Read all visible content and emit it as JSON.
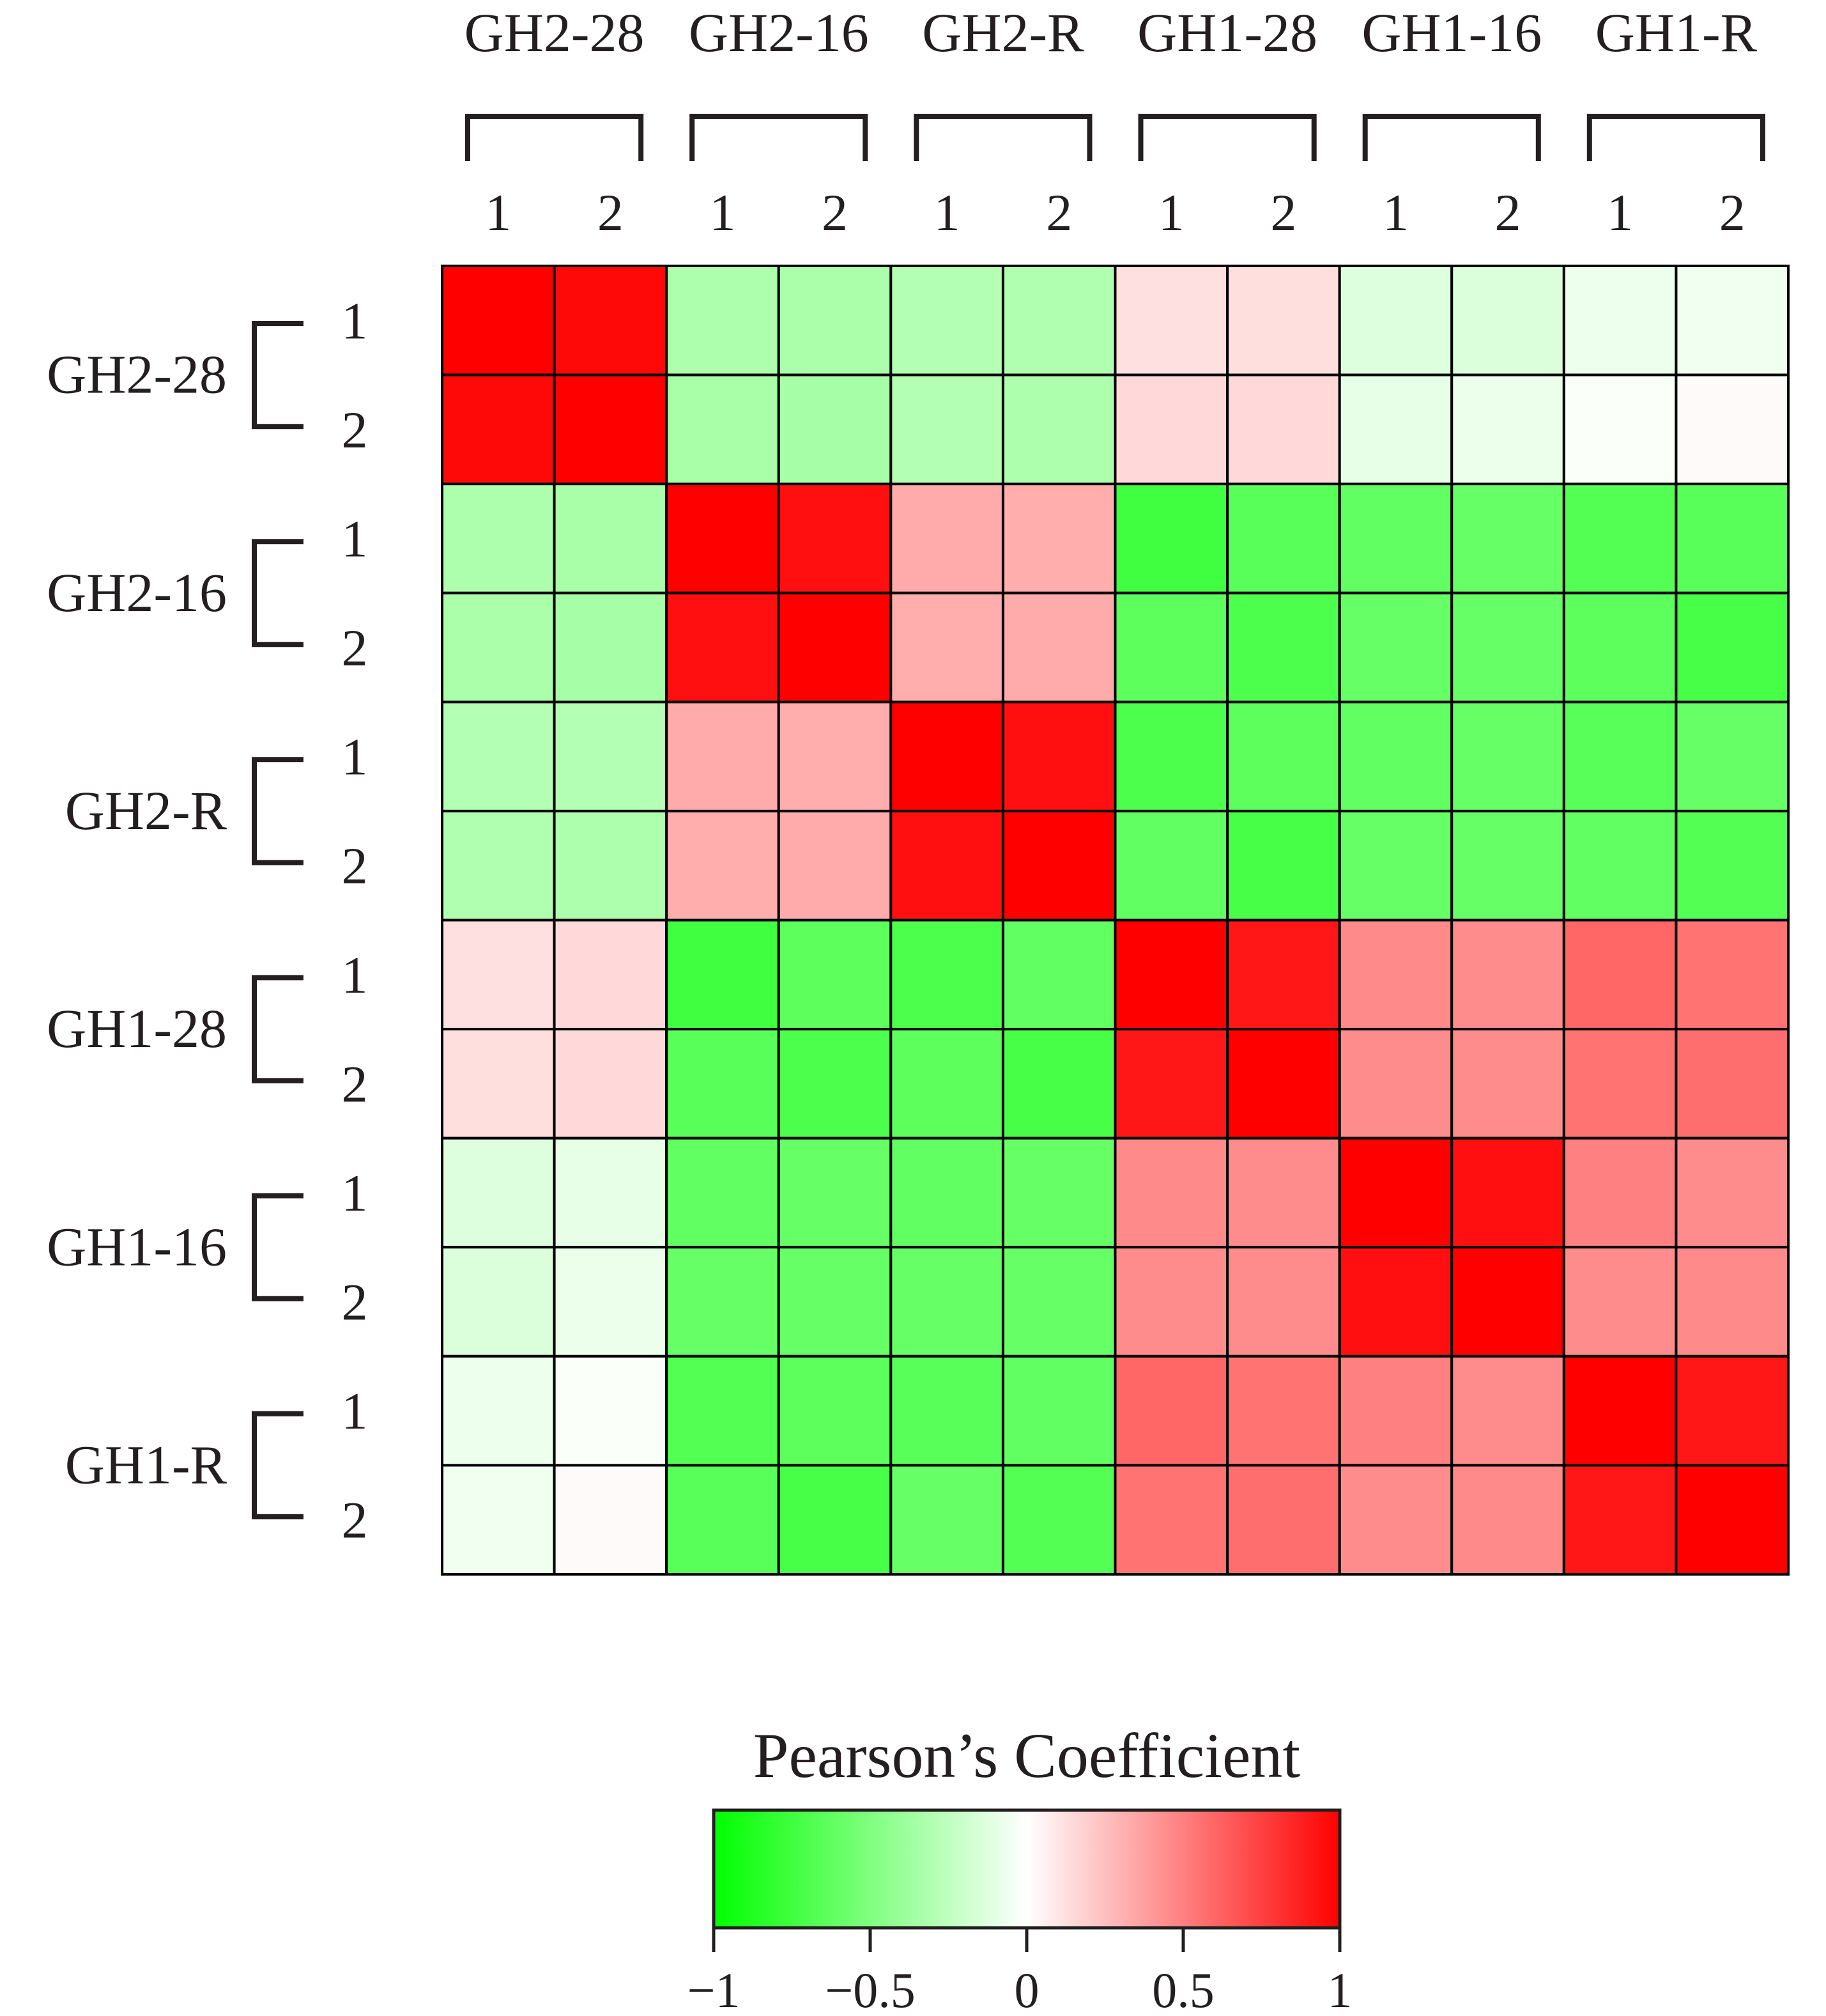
{
  "chart_data": {
    "type": "heatmap",
    "groups": [
      "GH2-28",
      "GH2-16",
      "GH2-R",
      "GH1-28",
      "GH1-16",
      "GH1-R"
    ],
    "replicates": [
      "1",
      "2"
    ],
    "matrix": [
      [
        1.0,
        0.97,
        -0.32,
        -0.33,
        -0.3,
        -0.31,
        0.12,
        0.13,
        -0.13,
        -0.14,
        -0.07,
        -0.06
      ],
      [
        0.97,
        1.0,
        -0.34,
        -0.35,
        -0.3,
        -0.32,
        0.15,
        0.15,
        -0.1,
        -0.08,
        -0.02,
        0.02
      ],
      [
        -0.32,
        -0.34,
        1.0,
        0.94,
        0.33,
        0.32,
        -0.75,
        -0.65,
        -0.62,
        -0.6,
        -0.68,
        -0.65
      ],
      [
        -0.33,
        -0.35,
        0.94,
        1.0,
        0.32,
        0.33,
        -0.64,
        -0.7,
        -0.6,
        -0.6,
        -0.64,
        -0.72
      ],
      [
        -0.3,
        -0.3,
        0.33,
        0.32,
        1.0,
        0.94,
        -0.7,
        -0.64,
        -0.62,
        -0.6,
        -0.65,
        -0.6
      ],
      [
        -0.31,
        -0.32,
        0.32,
        0.33,
        0.94,
        1.0,
        -0.62,
        -0.72,
        -0.6,
        -0.6,
        -0.62,
        -0.68
      ],
      [
        0.12,
        0.15,
        -0.75,
        -0.64,
        -0.7,
        -0.62,
        1.0,
        0.91,
        0.46,
        0.45,
        0.6,
        0.55
      ],
      [
        0.13,
        0.15,
        -0.65,
        -0.7,
        -0.64,
        -0.72,
        0.91,
        1.0,
        0.45,
        0.45,
        0.55,
        0.57
      ],
      [
        -0.13,
        -0.1,
        -0.62,
        -0.6,
        -0.62,
        -0.6,
        0.46,
        0.45,
        1.0,
        0.94,
        0.5,
        0.45
      ],
      [
        -0.14,
        -0.08,
        -0.6,
        -0.6,
        -0.6,
        -0.6,
        0.45,
        0.45,
        0.94,
        1.0,
        0.45,
        0.46
      ],
      [
        -0.07,
        -0.02,
        -0.68,
        -0.64,
        -0.65,
        -0.62,
        0.6,
        0.55,
        0.5,
        0.45,
        1.0,
        0.91
      ],
      [
        -0.06,
        0.02,
        -0.65,
        -0.72,
        -0.6,
        -0.68,
        0.55,
        0.57,
        0.45,
        0.46,
        0.91,
        1.0
      ]
    ],
    "colorbar": {
      "title": "Pearson’s Coefficient",
      "range": [
        -1,
        1
      ],
      "ticks": [
        -1,
        -0.5,
        0,
        0.5,
        1
      ],
      "tick_labels": [
        "−1",
        "−0.5",
        "0",
        "0.5",
        "1"
      ],
      "colors": [
        "#00ff00",
        "#ffffff",
        "#ff0000"
      ]
    },
    "grid": true,
    "legend_position": "bottom"
  }
}
